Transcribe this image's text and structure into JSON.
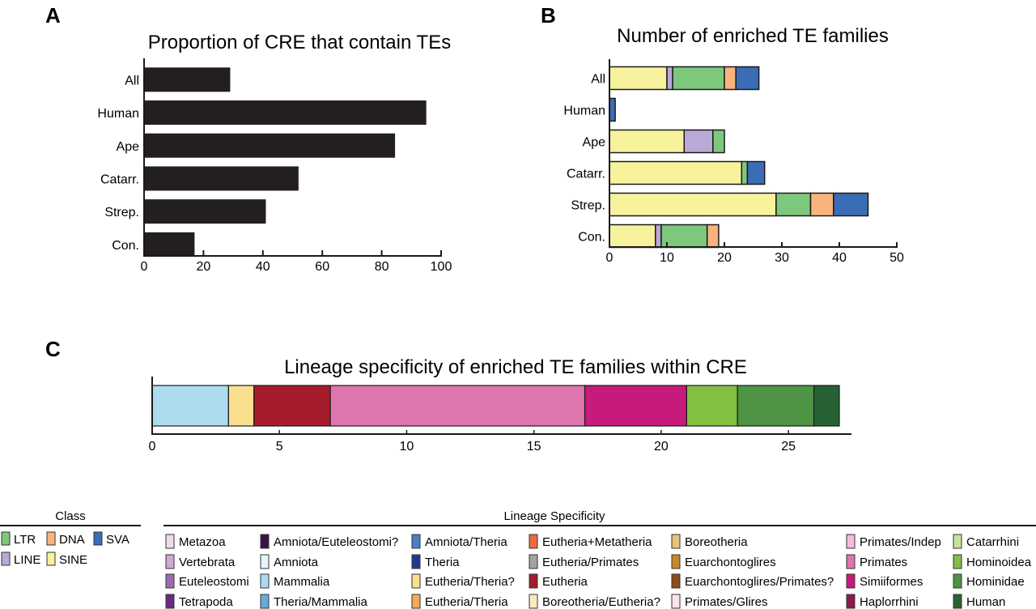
{
  "panels": {
    "a": "A",
    "b": "B",
    "c": "C"
  },
  "class_colors": {
    "LTR": "#7ec87e",
    "DNA": "#f8b47c",
    "SVA": "#3a6db5",
    "LINE": "#b9a9d6",
    "SINE": "#f7f29c"
  },
  "chart_data": [
    {
      "id": "A",
      "type": "bar",
      "orientation": "horizontal",
      "title": "Proportion of CRE that contain TEs",
      "categories": [
        "All",
        "Human",
        "Ape",
        "Catarr.",
        "Strep.",
        "Con."
      ],
      "values": [
        29,
        95,
        84.5,
        52,
        41,
        17
      ],
      "xlim": [
        0,
        100
      ],
      "xticks": [
        0,
        20,
        40,
        60,
        80,
        100
      ],
      "xlabel": "",
      "ylabel": "",
      "bar_color": "#231f20"
    },
    {
      "id": "B",
      "type": "bar",
      "orientation": "horizontal",
      "stacked": true,
      "title": "Number of enriched TE families",
      "categories": [
        "All",
        "Human",
        "Ape",
        "Catarr.",
        "Strep.",
        "Con."
      ],
      "series": [
        {
          "name": "SINE",
          "values": [
            10,
            0,
            13,
            23,
            29,
            8
          ]
        },
        {
          "name": "LINE",
          "values": [
            1,
            0,
            5,
            0,
            0,
            1
          ]
        },
        {
          "name": "LTR",
          "values": [
            9,
            0,
            2,
            1,
            6,
            8
          ]
        },
        {
          "name": "DNA",
          "values": [
            2,
            0,
            0,
            0,
            4,
            2
          ]
        },
        {
          "name": "SVA",
          "values": [
            4,
            1,
            0,
            3,
            6,
            0
          ]
        }
      ],
      "xlim": [
        0,
        50
      ],
      "xticks": [
        0,
        10,
        20,
        30,
        40,
        50
      ],
      "xlabel": "",
      "ylabel": ""
    },
    {
      "id": "C",
      "type": "bar",
      "orientation": "horizontal",
      "stacked": true,
      "title": "Lineage specificity of enriched TE families within CRE",
      "categories": [
        ""
      ],
      "series": [
        {
          "name": "Mammalia",
          "values": [
            3
          ],
          "color": "#acdcee"
        },
        {
          "name": "Eutheria/Theria?",
          "values": [
            1
          ],
          "color": "#fadf8f"
        },
        {
          "name": "Eutheria",
          "values": [
            3
          ],
          "color": "#a51c2c"
        },
        {
          "name": "Primates",
          "values": [
            10
          ],
          "color": "#de76ae"
        },
        {
          "name": "Simiiformes",
          "values": [
            4
          ],
          "color": "#c61a7c"
        },
        {
          "name": "Hominoidea",
          "values": [
            2
          ],
          "color": "#82c042"
        },
        {
          "name": "Hominidae",
          "values": [
            3
          ],
          "color": "#4e9444"
        },
        {
          "name": "Human",
          "values": [
            1
          ],
          "color": "#266233"
        }
      ],
      "xlim": [
        0,
        27
      ],
      "xticks": [
        0,
        5,
        10,
        15,
        20,
        25
      ],
      "xlabel": "",
      "ylabel": ""
    }
  ],
  "legend_class": {
    "heading": "Class",
    "rows": [
      [
        {
          "label": "LTR",
          "color": "#7ec87e"
        },
        {
          "label": "DNA",
          "color": "#f8b47c"
        },
        {
          "label": "SVA",
          "color": "#3a6db5"
        }
      ],
      [
        {
          "label": "LINE",
          "color": "#b9a9d6"
        },
        {
          "label": "SINE",
          "color": "#f7f29c"
        }
      ]
    ]
  },
  "legend_lineage": {
    "heading": "Lineage Specificity",
    "columns": [
      [
        {
          "label": "Metazoa",
          "color": "#efdbec"
        },
        {
          "label": "Vertebrata",
          "color": "#cfa8d6"
        },
        {
          "label": "Euteleostomi",
          "color": "#9b6bb3"
        },
        {
          "label": "Tetrapoda",
          "color": "#6a2a86"
        }
      ],
      [
        {
          "label": "Amniota/Euteleostomi?",
          "color": "#3a1247"
        },
        {
          "label": "Amniota",
          "color": "#e3f4fb"
        },
        {
          "label": "Mammalia",
          "color": "#acdcee"
        },
        {
          "label": "Theria/Mammalia",
          "color": "#6aaad8"
        }
      ],
      [
        {
          "label": "Amniota/Theria",
          "color": "#4a7fc6"
        },
        {
          "label": "Theria",
          "color": "#253a8f"
        },
        {
          "label": "Eutheria/Theria?",
          "color": "#fadf8f"
        },
        {
          "label": "Eutheria/Theria",
          "color": "#f7a95a"
        }
      ],
      [
        {
          "label": "Eutheria+Metatheria",
          "color": "#ee6a3d"
        },
        {
          "label": "Eutheria/Primates",
          "color": "#a3a3a6"
        },
        {
          "label": "Eutheria",
          "color": "#a51c2c"
        },
        {
          "label": "Boreotheria/Eutheria?",
          "color": "#f8e9c6"
        }
      ],
      [
        {
          "label": "Boreotheria",
          "color": "#e6c27e"
        },
        {
          "label": "Euarchontoglires",
          "color": "#c9862e"
        },
        {
          "label": "Euarchontoglires/Primates?",
          "color": "#8a4e1c"
        },
        {
          "label": "Primates/Glires",
          "color": "#fbe3ef"
        }
      ],
      [
        {
          "label": "Primates/Indep",
          "color": "#f3bcd9"
        },
        {
          "label": "Primates",
          "color": "#de76ae"
        },
        {
          "label": "Simiiformes",
          "color": "#c61a7c"
        },
        {
          "label": "Haplorrhini",
          "color": "#8c1c4c"
        }
      ],
      [
        {
          "label": "Catarrhini",
          "color": "#c6e39c"
        },
        {
          "label": "Hominoidea",
          "color": "#82c042"
        },
        {
          "label": "Hominidae",
          "color": "#4e9444"
        },
        {
          "label": "Human",
          "color": "#266233"
        }
      ]
    ]
  }
}
